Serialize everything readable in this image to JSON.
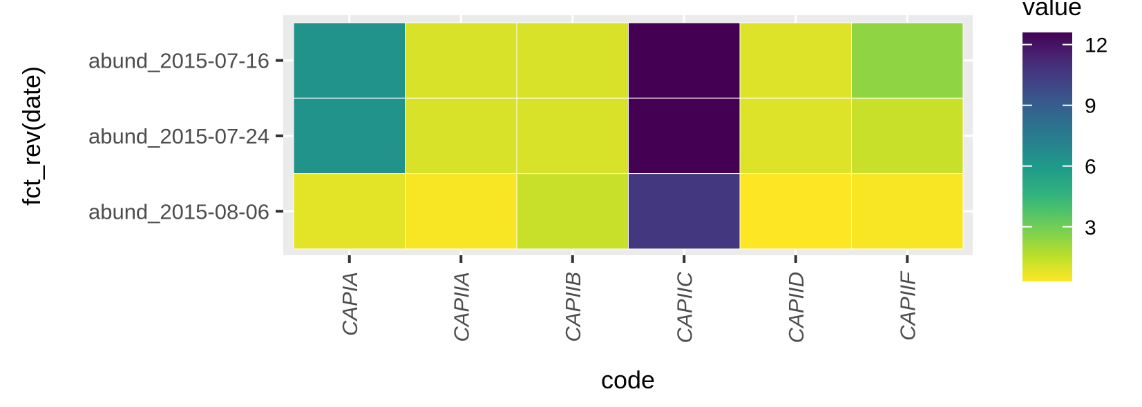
{
  "chart_data": {
    "type": "heatmap",
    "xlabel": "code",
    "ylabel": "fct_rev(date)",
    "x_categories": [
      "CAPIA",
      "CAPIIA",
      "CAPIIB",
      "CAPIIC",
      "CAPIID",
      "CAPIIF"
    ],
    "y_categories": [
      "abund_2015-07-16",
      "abund_2015-07-24",
      "abund_2015-08-06"
    ],
    "values": [
      [
        6.3,
        1.0,
        1.0,
        12.6,
        0.9,
        2.4
      ],
      [
        6.3,
        1.0,
        1.0,
        12.6,
        0.9,
        1.3
      ],
      [
        0.8,
        0.4,
        1.3,
        10.6,
        0.3,
        0.4
      ]
    ],
    "legend": {
      "title": "value",
      "ticks": [
        3,
        6,
        9,
        12
      ],
      "range": [
        0.3,
        12.6
      ],
      "palette": "viridis (reversed)",
      "position": "right"
    },
    "panel_background": "#ebebeb",
    "grid": true
  }
}
